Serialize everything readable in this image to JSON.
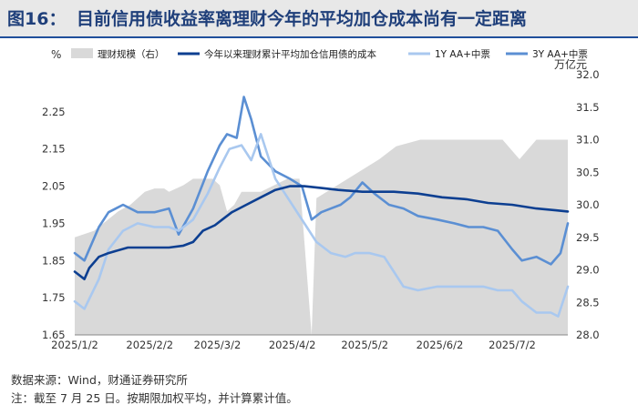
{
  "figure": {
    "label": "图16：",
    "title": "目前信用债收益率离理财今年的平均加仓成本尚有一定距离",
    "source": "数据来源：Wind，财通证券研究所",
    "note": "注：截至 7 月 25 日。按期限加权平均，并计算累计值。"
  },
  "chart_data": {
    "type": "line",
    "y_left_unit": "%",
    "y_right_unit": "万亿元",
    "ylim_left": [
      1.65,
      2.35
    ],
    "ylim_right": [
      28.0,
      32.0
    ],
    "y_left_ticks": [
      "2.25",
      "2.15",
      "2.05",
      "1.95",
      "1.85",
      "1.75",
      "1.65"
    ],
    "y_right_ticks": [
      "32.0",
      "31.5",
      "31.0",
      "30.5",
      "30.0",
      "29.5",
      "29.0",
      "28.5",
      "28.0"
    ],
    "x_tick_labels": [
      "2025/1/2",
      "2025/2/2",
      "2025/3/2",
      "2025/4/2",
      "2025/5/2",
      "2025/6/2",
      "2025/7/2"
    ],
    "legend_position": "top",
    "legend": [
      {
        "name": "理财规模（右）",
        "style": "area",
        "color": "#d9d9d9"
      },
      {
        "name": "今年以来理财累计平均加仓信用债的成本",
        "style": "line",
        "color": "#0d3f91"
      },
      {
        "name": "1Y AA+中票",
        "style": "line",
        "color": "#a9c8ef"
      },
      {
        "name": "3Y AA+中票",
        "style": "line",
        "color": "#5b8fd3"
      }
    ],
    "series": [
      {
        "name": "理财规模（右）",
        "axis": "right",
        "x": [
          "2025/1/2",
          "2025/1/10",
          "2025/1/20",
          "2025/1/25",
          "2025/1/31",
          "2025/2/4",
          "2025/2/8",
          "2025/2/10",
          "2025/2/16",
          "2025/2/20",
          "2025/2/24",
          "2025/2/28",
          "2025/3/3",
          "2025/3/6",
          "2025/3/9",
          "2025/3/12",
          "2025/3/20",
          "2025/3/31",
          "2025/4/5",
          "2025/4/10",
          "2025/4/12",
          "2025/4/25",
          "2025/5/8",
          "2025/5/15",
          "2025/5/25",
          "2025/6/8",
          "2025/6/18",
          "2025/6/28",
          "2025/7/5",
          "2025/7/12",
          "2025/7/19",
          "2025/7/25"
        ],
        "values": [
          29.5,
          29.6,
          29.9,
          30.0,
          30.2,
          30.25,
          30.25,
          30.2,
          30.3,
          30.4,
          30.4,
          30.4,
          30.3,
          29.9,
          30.0,
          30.2,
          30.2,
          30.4,
          30.4,
          28.0,
          30.1,
          30.4,
          30.7,
          30.9,
          31.0,
          31.0,
          31.0,
          31.0,
          30.7,
          31.0,
          31.0,
          31.0
        ]
      },
      {
        "name": "今年以来理财累计平均加仓信用债的成本",
        "axis": "left",
        "x": [
          "2025/1/2",
          "2025/1/6",
          "2025/1/8",
          "2025/1/12",
          "2025/1/16",
          "2025/1/24",
          "2025/2/4",
          "2025/2/10",
          "2025/2/16",
          "2025/2/20",
          "2025/2/24",
          "2025/3/1",
          "2025/3/4",
          "2025/3/8",
          "2025/3/14",
          "2025/3/20",
          "2025/3/26",
          "2025/4/1",
          "2025/4/7",
          "2025/4/14",
          "2025/4/21",
          "2025/5/1",
          "2025/5/14",
          "2025/5/24",
          "2025/6/3",
          "2025/6/13",
          "2025/6/22",
          "2025/7/2",
          "2025/7/12",
          "2025/7/20",
          "2025/7/25"
        ],
        "values": [
          1.82,
          1.8,
          1.83,
          1.86,
          1.87,
          1.885,
          1.885,
          1.885,
          1.89,
          1.9,
          1.93,
          1.945,
          1.96,
          1.98,
          2.0,
          2.02,
          2.04,
          2.05,
          2.05,
          2.045,
          2.04,
          2.035,
          2.035,
          2.03,
          2.02,
          2.015,
          2.005,
          2.0,
          1.99,
          1.985,
          1.982
        ]
      },
      {
        "name": "1Y AA+中票",
        "axis": "left",
        "x": [
          "2025/1/2",
          "2025/1/6",
          "2025/1/12",
          "2025/1/16",
          "2025/1/22",
          "2025/1/28",
          "2025/2/4",
          "2025/2/10",
          "2025/2/14",
          "2025/2/20",
          "2025/2/26",
          "2025/3/3",
          "2025/3/7",
          "2025/3/12",
          "2025/3/16",
          "2025/3/20",
          "2025/3/26",
          "2025/4/1",
          "2025/4/3",
          "2025/4/8",
          "2025/4/12",
          "2025/4/18",
          "2025/4/24",
          "2025/4/28",
          "2025/5/4",
          "2025/5/10",
          "2025/5/14",
          "2025/5/18",
          "2025/5/24",
          "2025/6/1",
          "2025/6/8",
          "2025/6/14",
          "2025/6/20",
          "2025/6/26",
          "2025/7/2",
          "2025/7/6",
          "2025/7/12",
          "2025/7/18",
          "2025/7/21",
          "2025/7/25"
        ],
        "values": [
          1.74,
          1.72,
          1.8,
          1.88,
          1.93,
          1.95,
          1.94,
          1.94,
          1.93,
          1.96,
          2.03,
          2.1,
          2.15,
          2.16,
          2.12,
          2.19,
          2.07,
          2.01,
          1.99,
          1.94,
          1.9,
          1.87,
          1.86,
          1.87,
          1.87,
          1.86,
          1.82,
          1.78,
          1.77,
          1.78,
          1.78,
          1.78,
          1.78,
          1.77,
          1.77,
          1.74,
          1.71,
          1.71,
          1.7,
          1.78
        ]
      },
      {
        "name": "3Y AA+中票",
        "axis": "left",
        "x": [
          "2025/1/2",
          "2025/1/6",
          "2025/1/12",
          "2025/1/16",
          "2025/1/22",
          "2025/1/28",
          "2025/2/4",
          "2025/2/10",
          "2025/2/14",
          "2025/2/20",
          "2025/2/26",
          "2025/3/3",
          "2025/3/6",
          "2025/3/10",
          "2025/3/13",
          "2025/3/16",
          "2025/3/20",
          "2025/3/26",
          "2025/4/1",
          "2025/4/6",
          "2025/4/10",
          "2025/4/14",
          "2025/4/18",
          "2025/4/22",
          "2025/4/26",
          "2025/5/1",
          "2025/5/6",
          "2025/5/12",
          "2025/5/18",
          "2025/5/24",
          "2025/6/1",
          "2025/6/8",
          "2025/6/14",
          "2025/6/20",
          "2025/6/26",
          "2025/7/2",
          "2025/7/6",
          "2025/7/12",
          "2025/7/18",
          "2025/7/22",
          "2025/7/25"
        ],
        "values": [
          1.87,
          1.85,
          1.94,
          1.98,
          2.0,
          1.98,
          1.98,
          1.99,
          1.92,
          1.99,
          2.09,
          2.16,
          2.19,
          2.18,
          2.29,
          2.23,
          2.13,
          2.09,
          2.07,
          2.05,
          1.96,
          1.98,
          1.99,
          2.0,
          2.02,
          2.06,
          2.03,
          2.0,
          1.99,
          1.97,
          1.96,
          1.95,
          1.94,
          1.94,
          1.93,
          1.88,
          1.85,
          1.86,
          1.84,
          1.87,
          1.95
        ]
      }
    ]
  }
}
